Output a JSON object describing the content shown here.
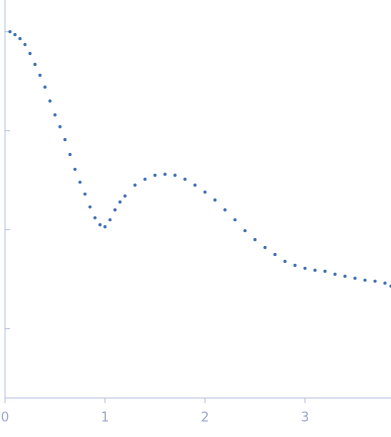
{
  "chart_data": {
    "type": "scatter",
    "color": "#3a6db4",
    "x": [
      0.05,
      0.1,
      0.15,
      0.2,
      0.25,
      0.3,
      0.35,
      0.4,
      0.45,
      0.5,
      0.55,
      0.6,
      0.65,
      0.7,
      0.75,
      0.8,
      0.85,
      0.9,
      0.95,
      1.0,
      1.05,
      1.1,
      1.15,
      1.2,
      1.3,
      1.4,
      1.5,
      1.6,
      1.7,
      1.8,
      1.9,
      2.0,
      2.1,
      2.2,
      2.3,
      2.4,
      2.5,
      2.6,
      2.7,
      2.8,
      2.9,
      3.0,
      3.1,
      3.2,
      3.3,
      3.4,
      3.5,
      3.6,
      3.7,
      3.8,
      3.86
    ],
    "values": [
      0,
      -0.03,
      -0.07,
      -0.13,
      -0.22,
      -0.33,
      -0.44,
      -0.56,
      -0.7,
      -0.84,
      -0.96,
      -1.09,
      -1.24,
      -1.39,
      -1.52,
      -1.64,
      -1.77,
      -1.88,
      -1.95,
      -1.97,
      -1.9,
      -1.8,
      -1.72,
      -1.66,
      -1.55,
      -1.49,
      -1.45,
      -1.44,
      -1.45,
      -1.49,
      -1.55,
      -1.62,
      -1.7,
      -1.8,
      -1.9,
      -2.01,
      -2.1,
      -2.18,
      -2.25,
      -2.32,
      -2.36,
      -2.39,
      -2.41,
      -2.42,
      -2.45,
      -2.47,
      -2.49,
      -2.51,
      -2.52,
      -2.54,
      -2.57
    ],
    "xlim": [
      -0.05,
      3.86
    ],
    "ylim": [
      -3.7,
      0.32
    ],
    "xticks": [
      0,
      1,
      2,
      3
    ],
    "yticks": [
      -3,
      -2,
      -1,
      0
    ]
  }
}
